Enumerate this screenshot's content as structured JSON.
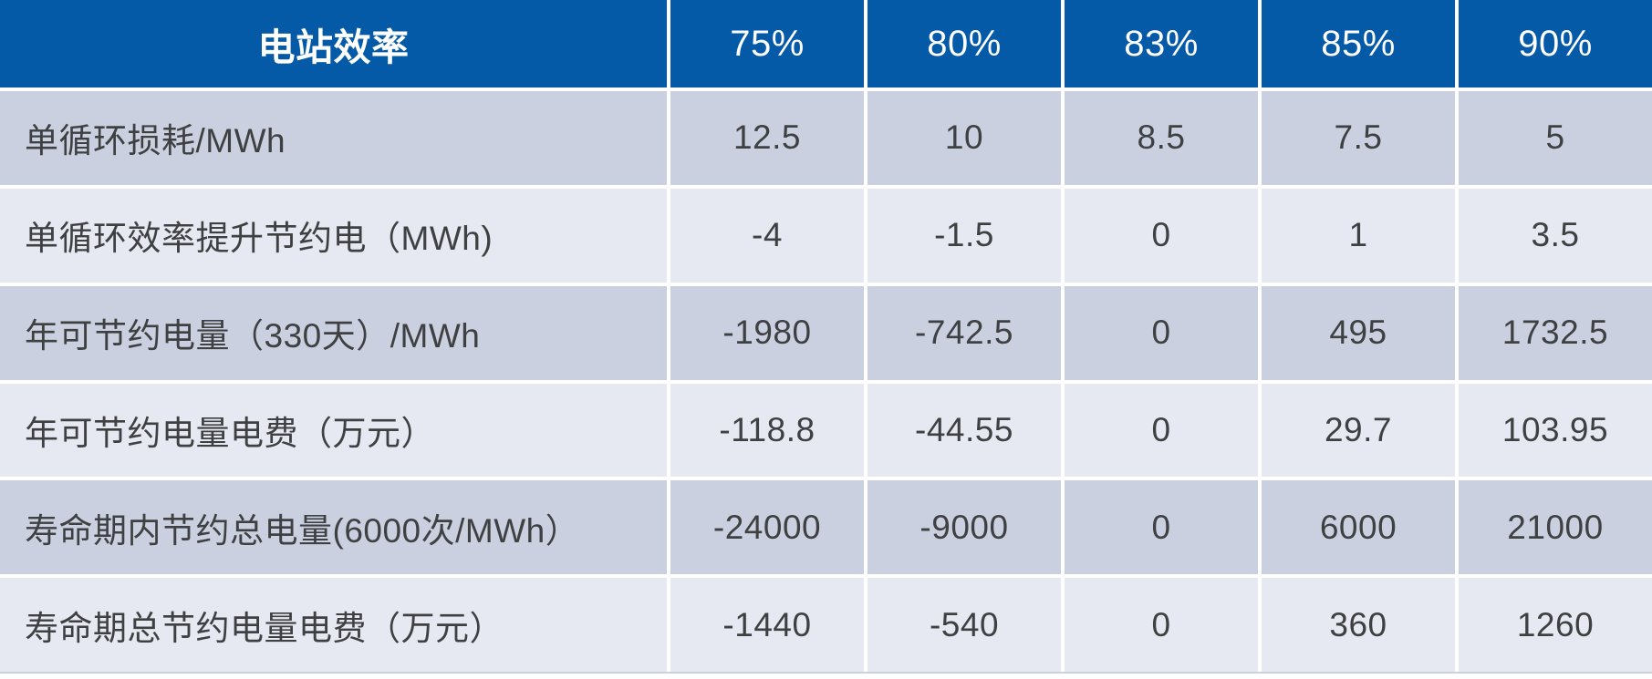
{
  "table": {
    "header": {
      "title": "电站效率",
      "columns": [
        "75%",
        "80%",
        "83%",
        "85%",
        "90%"
      ]
    },
    "rows": [
      {
        "label": "单循环损耗/MWh",
        "values": [
          "12.5",
          "10",
          "8.5",
          "7.5",
          "5"
        ]
      },
      {
        "label": "单循环效率提升节约电（MWh)",
        "values": [
          "-4",
          "-1.5",
          "0",
          "1",
          "3.5"
        ]
      },
      {
        "label": "年可节约电量（330天）/MWh",
        "values": [
          "-1980",
          "-742.5",
          "0",
          "495",
          "1732.5"
        ]
      },
      {
        "label": "年可节约电量电费（万元）",
        "values": [
          "-118.8",
          "-44.55",
          "0",
          "29.7",
          "103.95"
        ]
      },
      {
        "label": "寿命期内节约总电量(6000次/MWh）",
        "values": [
          "-24000",
          "-9000",
          "0",
          "6000",
          "21000"
        ]
      },
      {
        "label": "寿命期总节约电量电费（万元）",
        "values": [
          "-1440",
          "-540",
          "0",
          "360",
          "1260"
        ]
      }
    ],
    "colors": {
      "header_bg": "#045aa7",
      "header_text": "#ffffff",
      "row_dark_bg": "#cad0df",
      "row_light_bg": "#e7e9f2",
      "body_text": "#3f4042",
      "separator": "#ffffff",
      "bottom_border": "#ccd1dc"
    }
  },
  "chart_data": {
    "type": "table",
    "title": "电站效率",
    "corner_label": "电站效率",
    "columns": [
      "75%",
      "80%",
      "83%",
      "85%",
      "90%"
    ],
    "row_labels": [
      "单循环损耗/MWh",
      "单循环效率提升节约电（MWh)",
      "年可节约电量（330天）/MWh",
      "年可节约电量电费（万元）",
      "寿命期内节约总电量(6000次/MWh）",
      "寿命期总节约电量电费（万元）"
    ],
    "rows": [
      [
        12.5,
        10,
        8.5,
        7.5,
        5
      ],
      [
        -4,
        -1.5,
        0,
        1,
        3.5
      ],
      [
        -1980,
        -742.5,
        0,
        495,
        1732.5
      ],
      [
        -118.8,
        -44.55,
        0,
        29.7,
        103.95
      ],
      [
        -24000,
        -9000,
        0,
        6000,
        21000
      ],
      [
        -1440,
        -540,
        0,
        360,
        1260
      ]
    ]
  }
}
